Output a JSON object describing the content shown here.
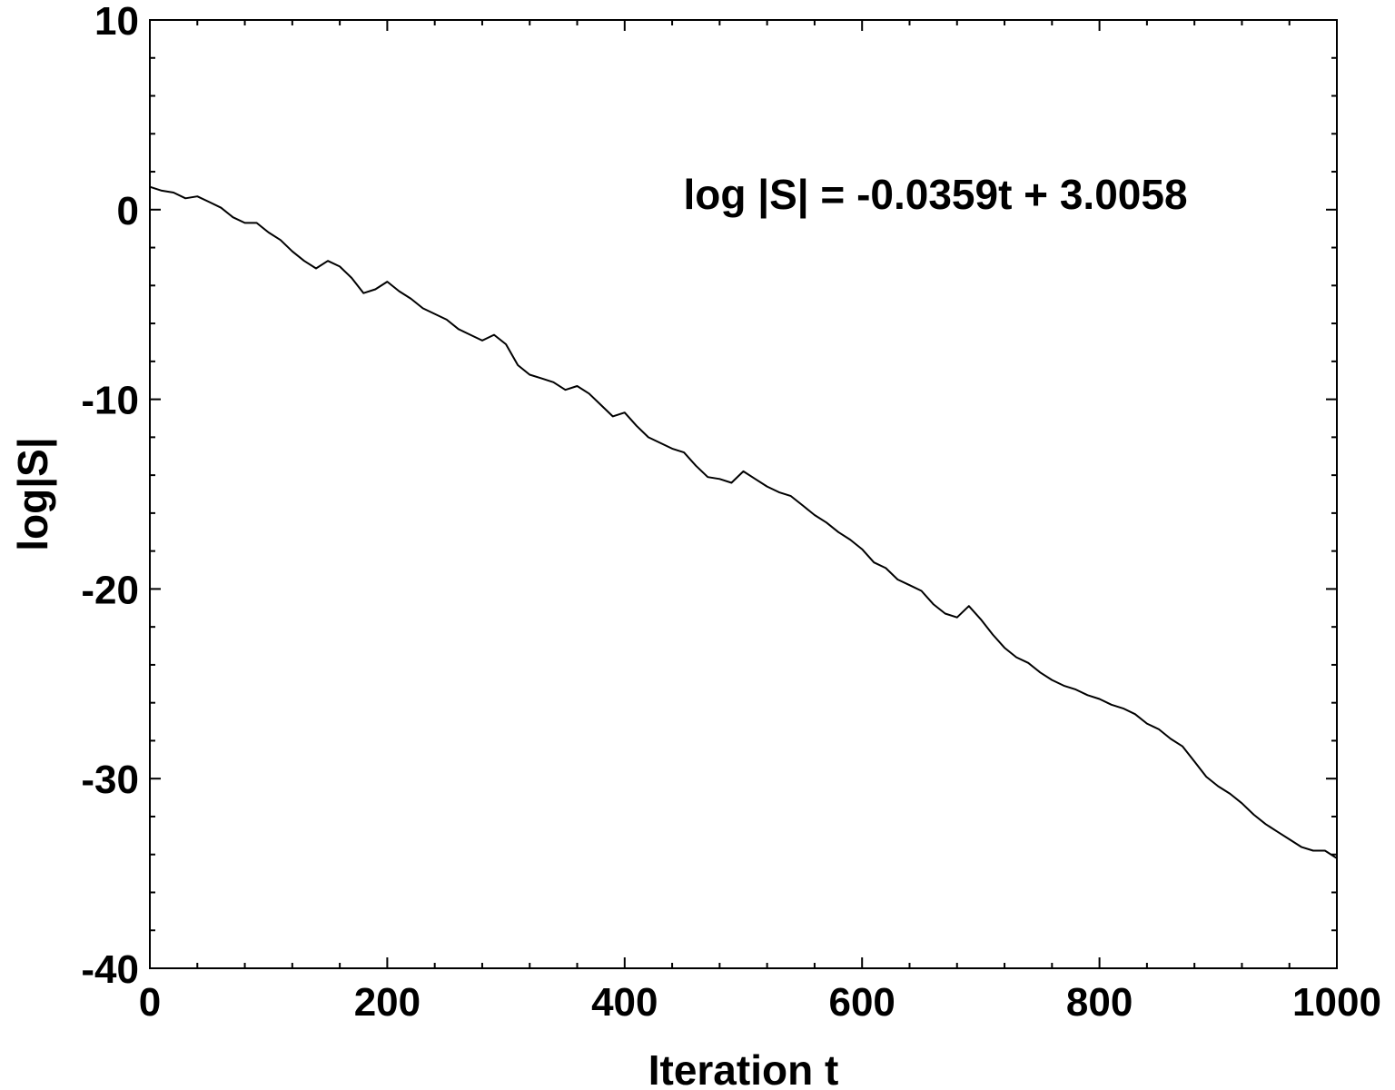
{
  "chart_data": {
    "type": "line",
    "title": "",
    "xlabel": "Iteration t",
    "ylabel": "log|S|",
    "xlim": [
      0,
      1000
    ],
    "ylim": [
      -40,
      10
    ],
    "x_ticks": [
      0,
      200,
      400,
      600,
      800,
      1000
    ],
    "y_ticks": [
      -40,
      -30,
      -20,
      -10,
      0,
      10
    ],
    "x_tick_labels": [
      "0",
      "200",
      "400",
      "600",
      "800",
      "1000"
    ],
    "y_tick_labels": [
      "-40",
      "-30",
      "-20",
      "-10",
      "0",
      "10"
    ],
    "annotation": "log |S| = -0.0359t + 3.0058",
    "grid": false,
    "line_color": "#000000",
    "series": [
      {
        "x": [
          0,
          10,
          20,
          30,
          40,
          50,
          60,
          70,
          80,
          90,
          100,
          110,
          120,
          130,
          140,
          150,
          160,
          170,
          180,
          190,
          200,
          210,
          220,
          230,
          240,
          250,
          260,
          270,
          280,
          290,
          300,
          310,
          320,
          330,
          340,
          350,
          360,
          370,
          380,
          390,
          400,
          410,
          420,
          430,
          440,
          450,
          460,
          470,
          480,
          490,
          500,
          510,
          520,
          530,
          540,
          550,
          560,
          570,
          580,
          590,
          600,
          610,
          620,
          630,
          640,
          650,
          660,
          670,
          680,
          690,
          700,
          710,
          720,
          730,
          740,
          750,
          760,
          770,
          780,
          790,
          800,
          810,
          820,
          830,
          840,
          850,
          860,
          870,
          880,
          890,
          900,
          910,
          920,
          930,
          940,
          950,
          960,
          970,
          980,
          990,
          1000
        ],
        "values": [
          1.2,
          1.0,
          0.9,
          0.6,
          0.7,
          0.4,
          0.1,
          -0.4,
          -0.7,
          -0.7,
          -1.2,
          -1.6,
          -2.2,
          -2.7,
          -3.1,
          -2.7,
          -3.0,
          -3.6,
          -4.4,
          -4.2,
          -3.8,
          -4.3,
          -4.7,
          -5.2,
          -5.5,
          -5.8,
          -6.3,
          -6.6,
          -6.9,
          -6.6,
          -7.1,
          -8.2,
          -8.7,
          -8.9,
          -9.1,
          -9.5,
          -9.3,
          -9.7,
          -10.3,
          -10.9,
          -10.7,
          -11.4,
          -12.0,
          -12.3,
          -12.6,
          -12.8,
          -13.5,
          -14.1,
          -14.2,
          -14.4,
          -13.8,
          -14.2,
          -14.6,
          -14.9,
          -15.1,
          -15.6,
          -16.1,
          -16.5,
          -17.0,
          -17.4,
          -17.9,
          -18.6,
          -18.9,
          -19.5,
          -19.8,
          -20.1,
          -20.8,
          -21.3,
          -21.5,
          -20.9,
          -21.6,
          -22.4,
          -23.1,
          -23.6,
          -23.9,
          -24.4,
          -24.8,
          -25.1,
          -25.3,
          -25.6,
          -25.8,
          -26.1,
          -26.3,
          -26.6,
          -27.1,
          -27.4,
          -27.9,
          -28.3,
          -29.1,
          -29.9,
          -30.4,
          -30.8,
          -31.3,
          -31.9,
          -32.4,
          -32.8,
          -33.2,
          -33.6,
          -33.8,
          -33.8,
          -34.2
        ]
      }
    ]
  }
}
